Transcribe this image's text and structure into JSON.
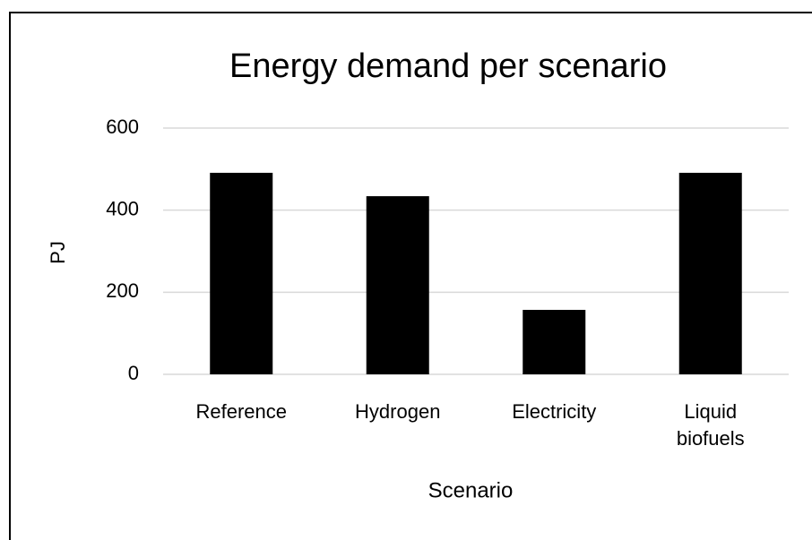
{
  "chart_data": {
    "type": "bar",
    "title": "Energy demand per scenario",
    "x_label": "Scenario",
    "y_label": "PJ",
    "categories": [
      "Reference",
      "Hydrogen",
      "Electricity",
      "Liquid biofuels"
    ],
    "values": [
      491,
      434,
      157,
      491
    ],
    "color": "#000000",
    "ylim": [
      0,
      600
    ],
    "yticks": [
      0,
      200,
      400,
      600
    ],
    "grid": true
  }
}
